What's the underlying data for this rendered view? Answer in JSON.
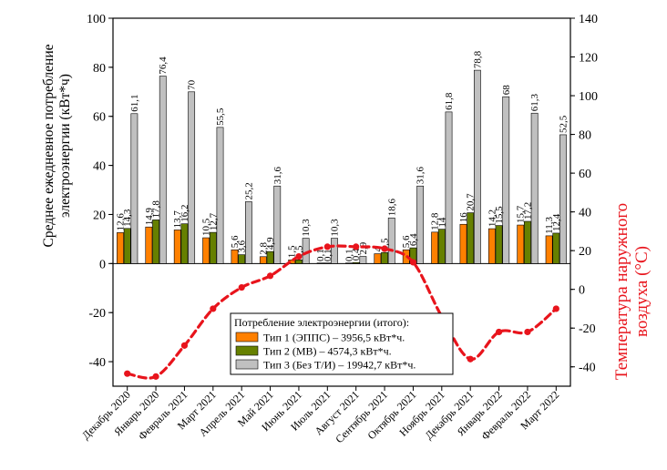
{
  "chart_data": {
    "type": "bar",
    "categories": [
      "Декабрь 2020",
      "Январь 2020",
      "Февраль 2021",
      "Март 2021",
      "Апрель 2021",
      "Май 2021",
      "Июнь 2021",
      "Июль 2021",
      "Август 2021",
      "Сентябрь 2021",
      "Октябрь 2021",
      "Ноябрь 2021",
      "Декабрь 2021",
      "Январь 2022",
      "Февраль 2022",
      "Март 2022"
    ],
    "series": [
      {
        "name": "Тип 1 (ЭППС) – 3956,5 кВт*ч.",
        "color": "#ff8000",
        "values": [
          12.6,
          14.9,
          13.7,
          10.5,
          5.6,
          2.8,
          1.5,
          0.1,
          0.1,
          4,
          5.6,
          12.8,
          16,
          14.2,
          15.7,
          11.3
        ],
        "labels": [
          "12,6",
          "14,9",
          "13,7",
          "10,5",
          "5,6",
          "2,8",
          "1,5",
          "0,1",
          "0,1",
          "4",
          "5,6",
          "12,8",
          "16",
          "14,2",
          "15,7",
          "11,3"
        ]
      },
      {
        "name": "Тип 2 (МВ) – 4574,3 кВт*ч.",
        "color": "#668000",
        "values": [
          14.3,
          17.8,
          16.2,
          12.7,
          3.6,
          4.9,
          1.5,
          0.1,
          0.4,
          4.5,
          6.4,
          14,
          20.7,
          15.5,
          17.2,
          12.4
        ],
        "labels": [
          "14,3",
          "17,8",
          "16,2",
          "12,7",
          "3,6",
          "4,9",
          "1,5",
          "0,1",
          "0,4",
          "4,5",
          "6,4",
          "14",
          "20,7",
          "15,5",
          "17,2",
          "12,4"
        ]
      },
      {
        "name": "Тип 3 (Без Т/И) – 19942,7 кВт*ч.",
        "color": "#c0c0c0",
        "values": [
          61.1,
          76.4,
          70,
          55.5,
          25.2,
          31.6,
          10.3,
          10.3,
          2.9,
          18.6,
          31.6,
          61.8,
          78.8,
          68,
          61.3,
          52.5
        ],
        "labels": [
          "61,1",
          "76,4",
          "70",
          "55,5",
          "25,2",
          "31,6",
          "10,3",
          "10,3",
          "2,9",
          "18,6",
          "31,6",
          "61,8",
          "78,8",
          "68",
          "61,3",
          "52,5"
        ]
      }
    ],
    "temperature": {
      "color": "#e8141c",
      "values": [
        -43.5,
        -45,
        -29,
        -10,
        1,
        7,
        17,
        22,
        22,
        21,
        14,
        -14,
        -36,
        -22,
        -22,
        -10
      ]
    },
    "ylabel": "Среднее ежедневное потребление электроэнергии (кВт*ч)",
    "y2label": "Температура наружного воздуха (°С)",
    "ylim": [
      -50,
      100
    ],
    "y2lim": [
      -50,
      140
    ],
    "yticks": [
      -40,
      -20,
      0,
      20,
      40,
      60,
      80,
      100
    ],
    "y2ticks": [
      -40,
      -20,
      0,
      20,
      40,
      60,
      80,
      100,
      120,
      140
    ],
    "legend": {
      "title": "Потребление электроэнергии (итого):",
      "position": "bottom-center"
    }
  }
}
